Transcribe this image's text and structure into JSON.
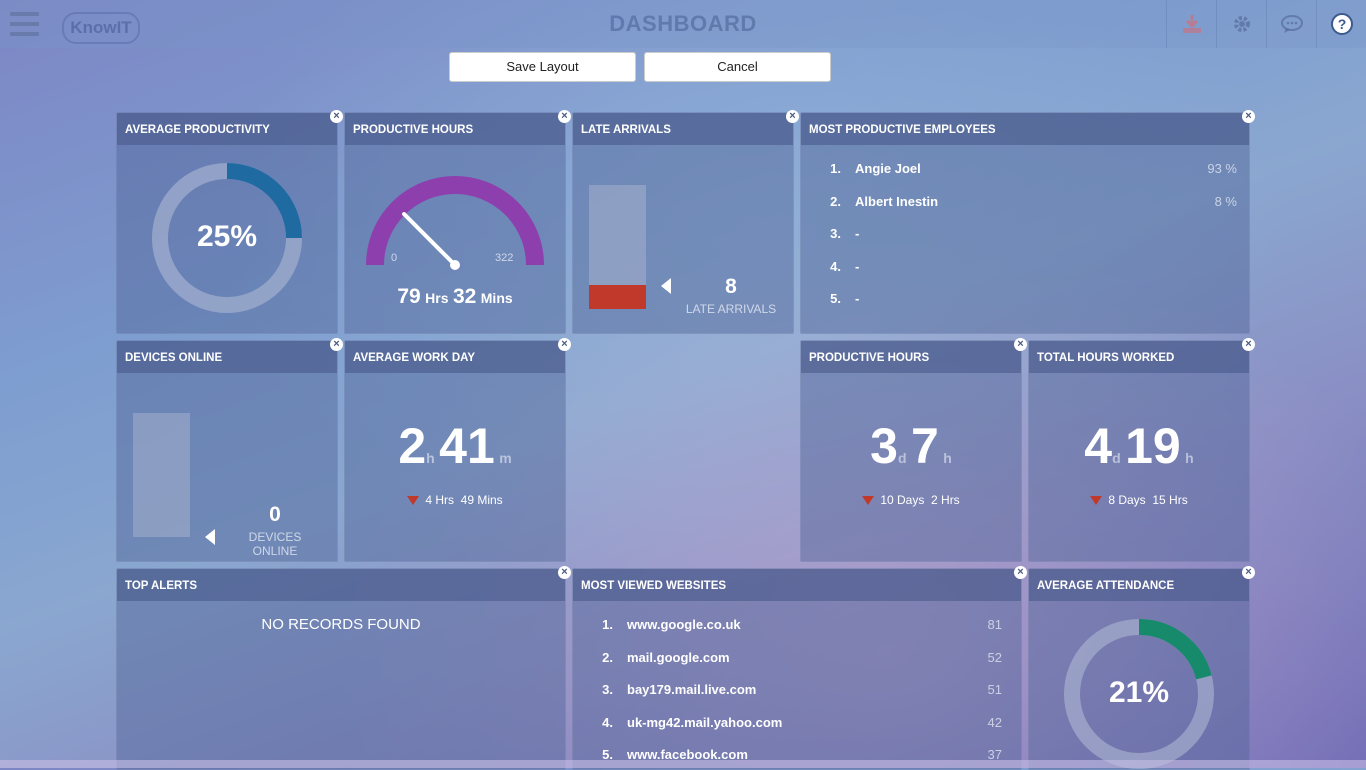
{
  "header": {
    "title": "DASHBOARD",
    "logo_text": "KnowIT",
    "icons": [
      "download-icon",
      "gear-icon",
      "chat-icon",
      "help-icon"
    ]
  },
  "toolbar": {
    "save_label": "Save Layout",
    "cancel_label": "Cancel"
  },
  "close_glyph": "×",
  "widgets": {
    "avg_productivity": {
      "title": "AVERAGE PRODUCTIVITY",
      "value_text": "25%",
      "percent": 25,
      "color": "#1f6aa0"
    },
    "productive_hours_gauge": {
      "title": "PRODUCTIVE HOURS",
      "min": "0",
      "max": "322",
      "hrs": "79",
      "hrs_unit": "Hrs",
      "mins": "32",
      "mins_unit": "Mins",
      "color": "#8e3fae",
      "fraction": 0.25
    },
    "late_arrivals": {
      "title": "LATE ARRIVALS",
      "value": "8",
      "label": "LATE ARRIVALS",
      "fill_fraction": 0.19,
      "color": "#c0392b"
    },
    "most_productive": {
      "title": "MOST PRODUCTIVE EMPLOYEES",
      "rows": [
        {
          "rank": "1.",
          "name": "Angie Joel",
          "value": "93  %"
        },
        {
          "rank": "2.",
          "name": "Albert Inestin",
          "value": "8  %"
        },
        {
          "rank": "3.",
          "name": "-",
          "value": ""
        },
        {
          "rank": "4.",
          "name": "-",
          "value": ""
        },
        {
          "rank": "5.",
          "name": "-",
          "value": ""
        }
      ]
    },
    "devices_online": {
      "title": "DEVICES ONLINE",
      "value": "0",
      "label": "DEVICES ONLINE"
    },
    "avg_work_day": {
      "title": "AVERAGE WORK DAY",
      "big1": "2",
      "unit1": "h",
      "big2": "41",
      "unit2": "m",
      "sub_a": "4 Hrs",
      "sub_b": "49 Mins"
    },
    "productive_hours": {
      "title": "PRODUCTIVE HOURS",
      "big1": "3",
      "unit1": "d",
      "big2": "7",
      "unit2": "h",
      "sub_a": "10 Days",
      "sub_b": "2 Hrs"
    },
    "total_hours": {
      "title": "TOTAL HOURS WORKED",
      "big1": "4",
      "unit1": "d",
      "big2": "19",
      "unit2": "h",
      "sub_a": "8 Days",
      "sub_b": "15 Hrs"
    },
    "top_alerts": {
      "title": "TOP ALERTS",
      "empty_text": "NO RECORDS FOUND"
    },
    "most_viewed": {
      "title": "MOST VIEWED WEBSITES",
      "rows": [
        {
          "rank": "1.",
          "name": "www.google.co.uk",
          "value": "81"
        },
        {
          "rank": "2.",
          "name": "mail.google.com",
          "value": "52"
        },
        {
          "rank": "3.",
          "name": "bay179.mail.live.com",
          "value": "51"
        },
        {
          "rank": "4.",
          "name": "uk-mg42.mail.yahoo.com",
          "value": "42"
        },
        {
          "rank": "5.",
          "name": "www.facebook.com",
          "value": "37"
        }
      ]
    },
    "avg_attendance": {
      "title": "AVERAGE ATTENDANCE",
      "value_text": "21%",
      "percent": 21,
      "color": "#168a6a"
    }
  }
}
